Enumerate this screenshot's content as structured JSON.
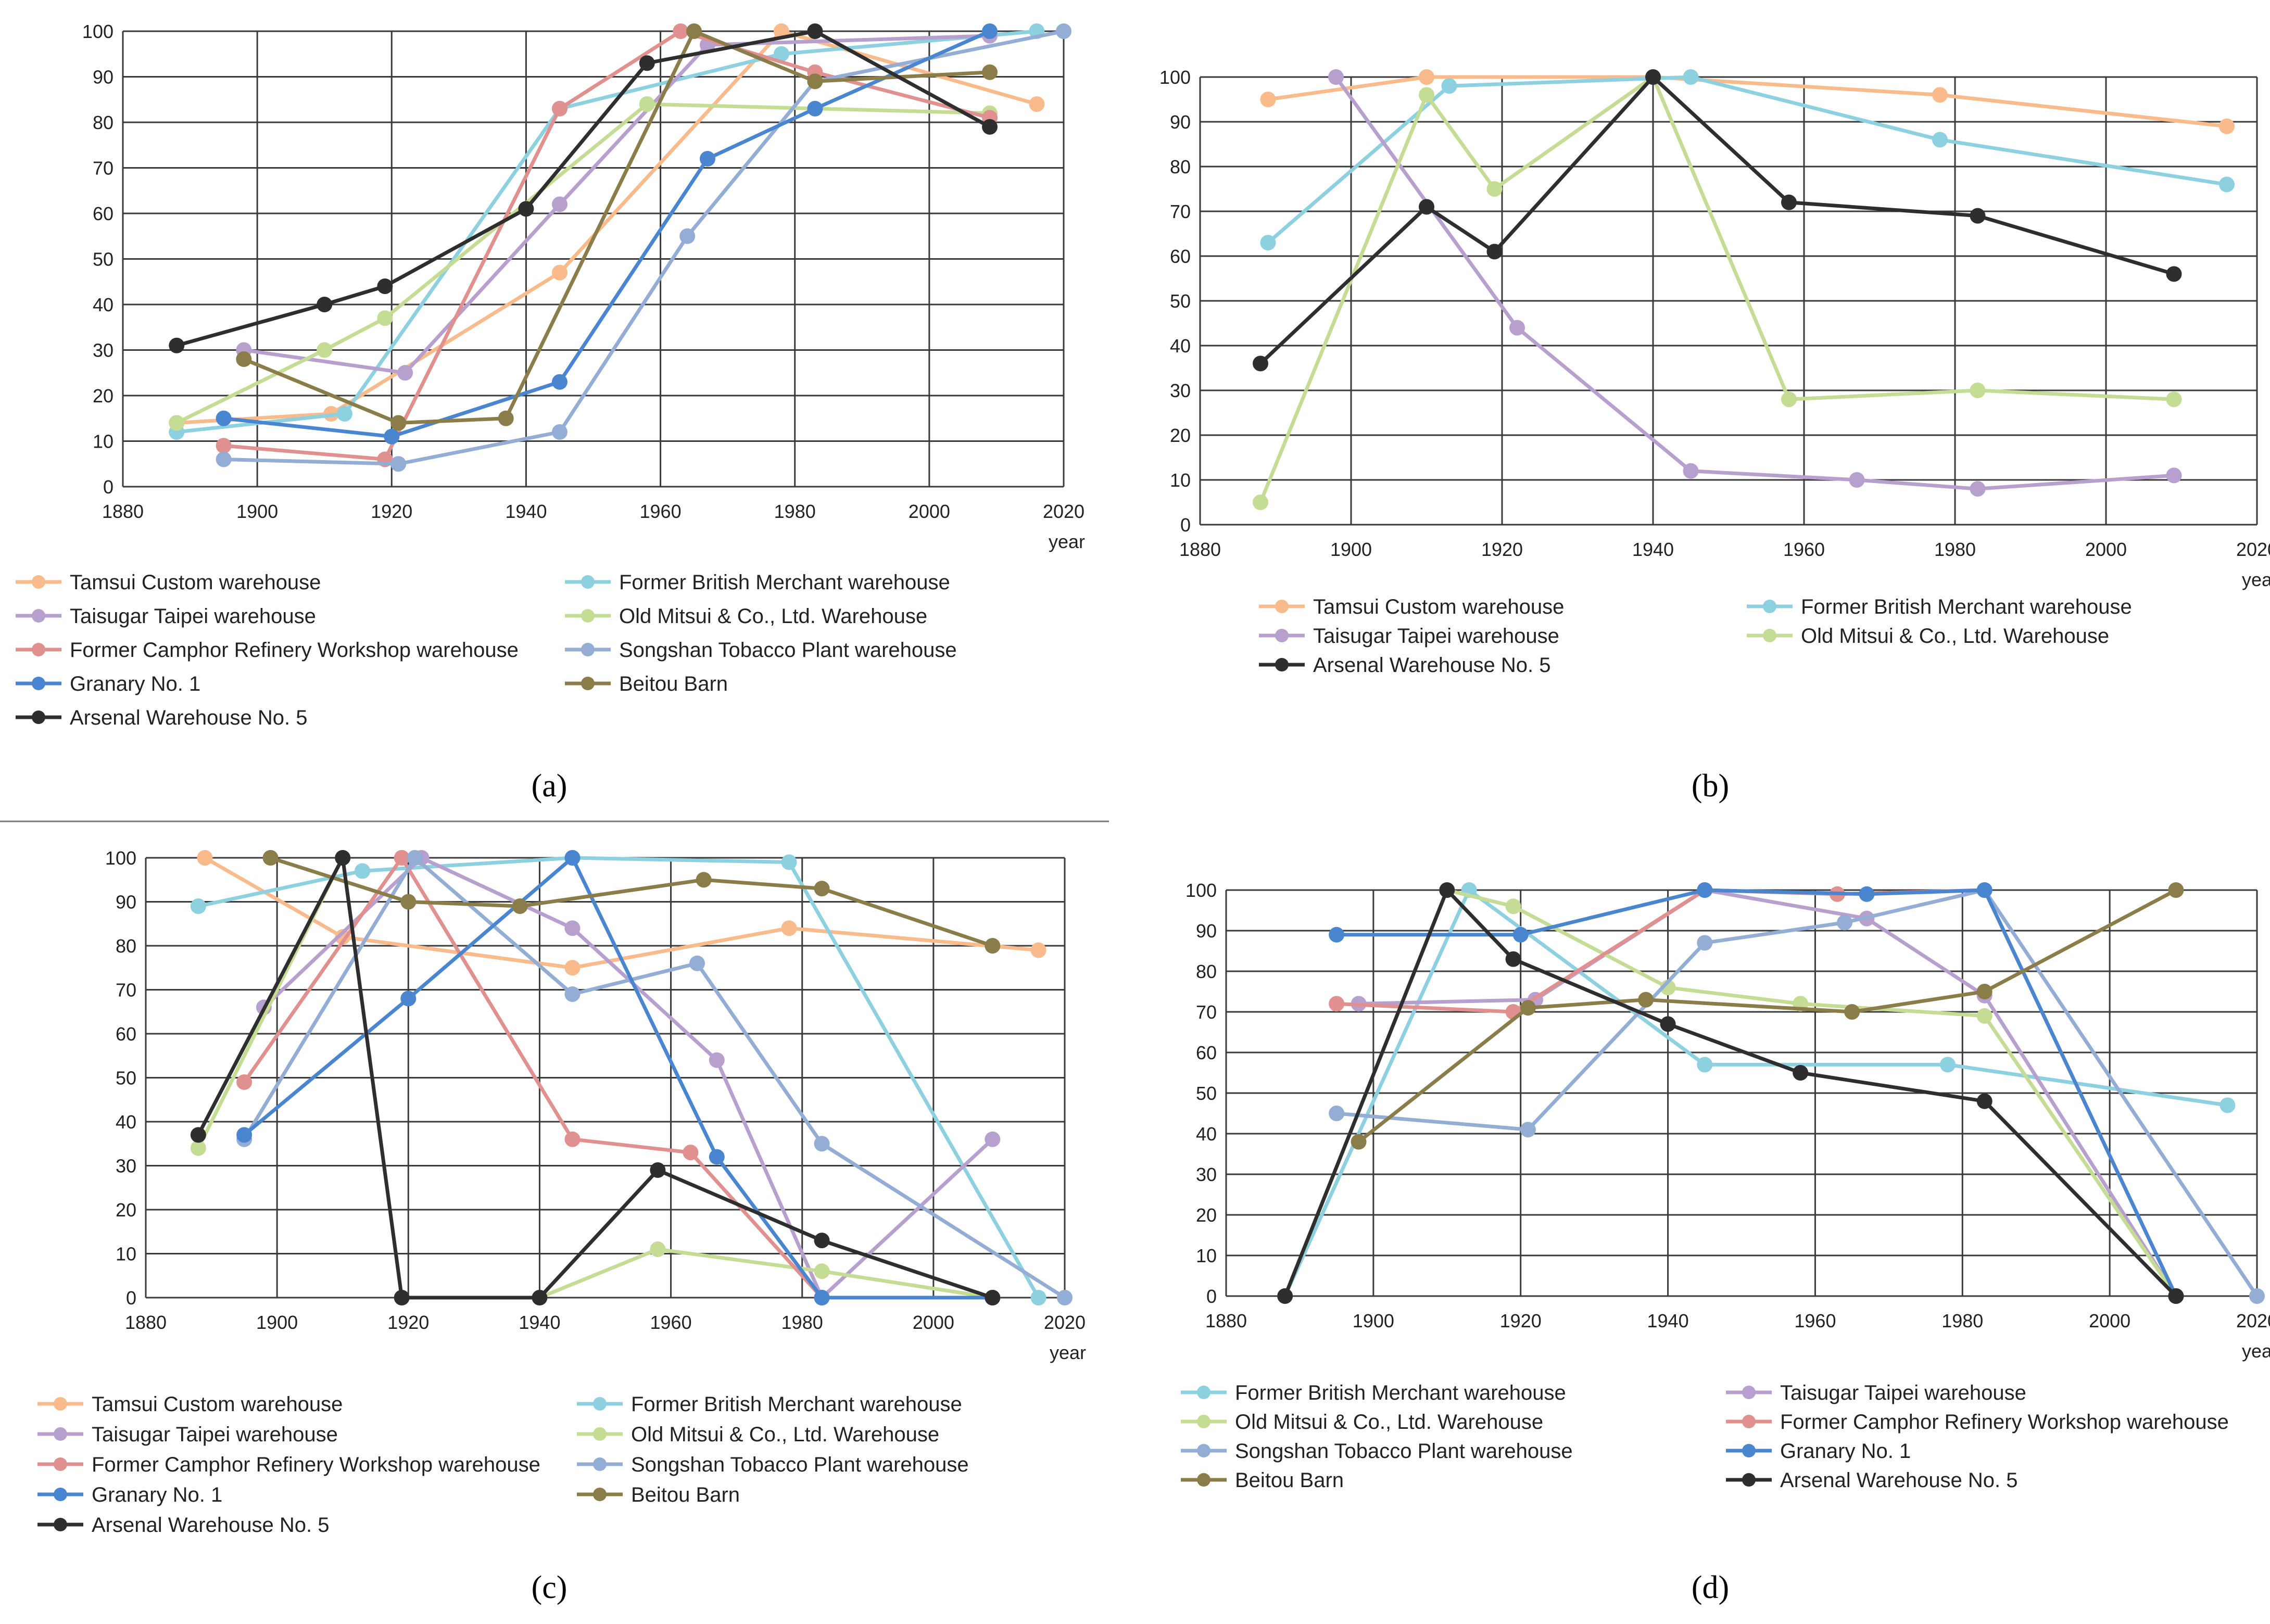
{
  "x_axis_label": "year",
  "captions": [
    "(a)",
    "(b)",
    "(c)",
    "(d)"
  ],
  "chart_data": [
    {
      "type": "line",
      "xlim": [
        1880,
        2020
      ],
      "ylim": [
        0,
        100
      ],
      "x_ticks": [
        1880,
        1900,
        1920,
        1940,
        1960,
        1980,
        2000,
        2020
      ],
      "y_ticks": [
        0,
        10,
        20,
        30,
        40,
        50,
        60,
        70,
        80,
        90,
        100
      ],
      "xlabel": "year",
      "grid": true,
      "legend_position": "bottom",
      "legend_columns": 2,
      "series": [
        {
          "name": "Tamsui Custom warehouse",
          "color": "#F9BB8B",
          "points": [
            [
              1888,
              14
            ],
            [
              1911,
              16
            ],
            [
              1945,
              47
            ],
            [
              1978,
              100
            ],
            [
              2016,
              84
            ]
          ]
        },
        {
          "name": "Former British Merchant warehouse",
          "color": "#8DD0E0",
          "points": [
            [
              1888,
              12
            ],
            [
              1913,
              16
            ],
            [
              1945,
              83
            ],
            [
              1978,
              95
            ],
            [
              2016,
              100
            ]
          ]
        },
        {
          "name": "Taisugar Taipei warehouse",
          "color": "#B7A0CE",
          "points": [
            [
              1898,
              30
            ],
            [
              1922,
              25
            ],
            [
              1945,
              62
            ],
            [
              1967,
              97
            ],
            [
              2009,
              99
            ]
          ]
        },
        {
          "name": "Old Mitsui & Co., Ltd. Warehouse",
          "color": "#C5DC95",
          "points": [
            [
              1888,
              14
            ],
            [
              1910,
              30
            ],
            [
              1919,
              37
            ],
            [
              1958,
              84
            ],
            [
              2009,
              82
            ]
          ]
        },
        {
          "name": "Former Camphor Refinery Workshop warehouse",
          "color": "#E0908E",
          "points": [
            [
              1895,
              9
            ],
            [
              1919,
              6
            ],
            [
              1945,
              83
            ],
            [
              1963,
              100
            ],
            [
              1983,
              91
            ],
            [
              2009,
              81
            ]
          ]
        },
        {
          "name": "Songshan Tobacco Plant warehouse",
          "color": "#93ADD5",
          "points": [
            [
              1895,
              6
            ],
            [
              1921,
              5
            ],
            [
              1945,
              12
            ],
            [
              1964,
              55
            ],
            [
              1983,
              89
            ],
            [
              2020,
              100
            ]
          ]
        },
        {
          "name": "Granary No. 1",
          "color": "#4A86D0",
          "points": [
            [
              1895,
              15
            ],
            [
              1920,
              11
            ],
            [
              1945,
              23
            ],
            [
              1967,
              72
            ],
            [
              1983,
              83
            ],
            [
              2009,
              100
            ]
          ]
        },
        {
          "name": "Beitou Barn",
          "color": "#8A7D49",
          "points": [
            [
              1898,
              28
            ],
            [
              1921,
              14
            ],
            [
              1937,
              15
            ],
            [
              1965,
              100
            ],
            [
              1983,
              89
            ],
            [
              2009,
              91
            ]
          ]
        },
        {
          "name": "Arsenal Warehouse No. 5",
          "color": "#2E2E2E",
          "points": [
            [
              1888,
              31
            ],
            [
              1910,
              40
            ],
            [
              1919,
              44
            ],
            [
              1940,
              61
            ],
            [
              1958,
              93
            ],
            [
              1983,
              100
            ],
            [
              2009,
              79
            ]
          ]
        }
      ]
    },
    {
      "type": "line",
      "xlim": [
        1880,
        2020
      ],
      "ylim": [
        0,
        100
      ],
      "x_ticks": [
        1880,
        1900,
        1920,
        1940,
        1960,
        1980,
        2000,
        2020
      ],
      "y_ticks": [
        0,
        10,
        20,
        30,
        40,
        50,
        60,
        70,
        80,
        90,
        100
      ],
      "xlabel": "year",
      "grid": true,
      "legend_position": "bottom",
      "legend_columns": 2,
      "series": [
        {
          "name": "Tamsui Custom warehouse",
          "color": "#F9BB8B",
          "points": [
            [
              1889,
              95
            ],
            [
              1910,
              100
            ],
            [
              1940,
              100
            ],
            [
              1978,
              96
            ],
            [
              2016,
              89
            ]
          ]
        },
        {
          "name": "Former British Merchant warehouse",
          "color": "#8DD0E0",
          "points": [
            [
              1889,
              63
            ],
            [
              1913,
              98
            ],
            [
              1945,
              100
            ],
            [
              1978,
              86
            ],
            [
              2016,
              76
            ]
          ]
        },
        {
          "name": "Taisugar Taipei warehouse",
          "color": "#B7A0CE",
          "points": [
            [
              1898,
              100
            ],
            [
              1922,
              44
            ],
            [
              1945,
              12
            ],
            [
              1967,
              10
            ],
            [
              1983,
              8
            ],
            [
              2009,
              11
            ]
          ]
        },
        {
          "name": "Old Mitsui & Co., Ltd. Warehouse",
          "color": "#C5DC95",
          "points": [
            [
              1888,
              5
            ],
            [
              1910,
              96
            ],
            [
              1919,
              75
            ],
            [
              1940,
              100
            ],
            [
              1958,
              28
            ],
            [
              1983,
              30
            ],
            [
              2009,
              28
            ]
          ]
        },
        {
          "name": "Arsenal Warehouse No. 5",
          "color": "#2E2E2E",
          "points": [
            [
              1888,
              36
            ],
            [
              1910,
              71
            ],
            [
              1919,
              61
            ],
            [
              1940,
              100
            ],
            [
              1958,
              72
            ],
            [
              1983,
              69
            ],
            [
              2009,
              56
            ]
          ]
        }
      ]
    },
    {
      "type": "line",
      "xlim": [
        1880,
        2020
      ],
      "ylim": [
        0,
        100
      ],
      "x_ticks": [
        1880,
        1900,
        1920,
        1940,
        1960,
        1980,
        2000,
        2020
      ],
      "y_ticks": [
        0,
        10,
        20,
        30,
        40,
        50,
        60,
        70,
        80,
        90,
        100
      ],
      "xlabel": "year",
      "grid": true,
      "legend_position": "bottom",
      "legend_columns": 2,
      "series": [
        {
          "name": "Tamsui Custom warehouse",
          "color": "#F9BB8B",
          "points": [
            [
              1889,
              100
            ],
            [
              1910,
              82
            ],
            [
              1945,
              75
            ],
            [
              1978,
              84
            ],
            [
              2016,
              79
            ]
          ]
        },
        {
          "name": "Former British Merchant warehouse",
          "color": "#8DD0E0",
          "points": [
            [
              1888,
              89
            ],
            [
              1913,
              97
            ],
            [
              1945,
              100
            ],
            [
              1978,
              99
            ],
            [
              2016,
              0
            ]
          ]
        },
        {
          "name": "Taisugar Taipei warehouse",
          "color": "#B7A0CE",
          "points": [
            [
              1898,
              66
            ],
            [
              1922,
              100
            ],
            [
              1945,
              84
            ],
            [
              1967,
              54
            ],
            [
              1983,
              0
            ],
            [
              2009,
              36
            ]
          ]
        },
        {
          "name": "Old Mitsui & Co., Ltd. Warehouse",
          "color": "#C5DC95",
          "points": [
            [
              1888,
              34
            ],
            [
              1910,
              100
            ],
            [
              1919,
              0
            ],
            [
              1940,
              0
            ],
            [
              1958,
              11
            ],
            [
              1983,
              6
            ],
            [
              2009,
              0
            ]
          ]
        },
        {
          "name": "Former Camphor Refinery Workshop warehouse",
          "color": "#E0908E",
          "points": [
            [
              1895,
              49
            ],
            [
              1919,
              100
            ],
            [
              1945,
              36
            ],
            [
              1963,
              33
            ],
            [
              1983,
              0
            ],
            [
              2009,
              0
            ]
          ]
        },
        {
          "name": "Songshan Tobacco Plant warehouse",
          "color": "#93ADD5",
          "points": [
            [
              1895,
              36
            ],
            [
              1921,
              100
            ],
            [
              1945,
              69
            ],
            [
              1964,
              76
            ],
            [
              1983,
              35
            ],
            [
              2020,
              0
            ]
          ]
        },
        {
          "name": "Granary No. 1",
          "color": "#4A86D0",
          "points": [
            [
              1895,
              37
            ],
            [
              1920,
              68
            ],
            [
              1945,
              100
            ],
            [
              1967,
              32
            ],
            [
              1983,
              0
            ],
            [
              2009,
              0
            ]
          ]
        },
        {
          "name": "Beitou Barn",
          "color": "#8A7D49",
          "points": [
            [
              1899,
              100
            ],
            [
              1920,
              90
            ],
            [
              1937,
              89
            ],
            [
              1965,
              95
            ],
            [
              1983,
              93
            ],
            [
              2009,
              80
            ]
          ]
        },
        {
          "name": "Arsenal Warehouse No. 5",
          "color": "#2E2E2E",
          "points": [
            [
              1888,
              37
            ],
            [
              1910,
              100
            ],
            [
              1919,
              0
            ],
            [
              1940,
              0
            ],
            [
              1958,
              29
            ],
            [
              1983,
              13
            ],
            [
              2009,
              0
            ]
          ]
        }
      ]
    },
    {
      "type": "line",
      "xlim": [
        1880,
        2020
      ],
      "ylim": [
        0,
        100
      ],
      "x_ticks": [
        1880,
        1900,
        1920,
        1940,
        1960,
        1980,
        2000,
        2020
      ],
      "y_ticks": [
        0,
        10,
        20,
        30,
        40,
        50,
        60,
        70,
        80,
        90,
        100
      ],
      "xlabel": "year",
      "grid": true,
      "legend_position": "bottom",
      "legend_columns": 2,
      "series": [
        {
          "name": "Former British Merchant warehouse",
          "color": "#8DD0E0",
          "points": [
            [
              1888,
              0
            ],
            [
              1913,
              100
            ],
            [
              1945,
              57
            ],
            [
              1978,
              57
            ],
            [
              2016,
              47
            ]
          ]
        },
        {
          "name": "Taisugar Taipei warehouse",
          "color": "#B7A0CE",
          "points": [
            [
              1898,
              72
            ],
            [
              1922,
              73
            ],
            [
              1945,
              100
            ],
            [
              1967,
              93
            ],
            [
              1983,
              74
            ],
            [
              2009,
              0
            ]
          ]
        },
        {
          "name": "Old Mitsui & Co., Ltd. Warehouse",
          "color": "#C5DC95",
          "points": [
            [
              1888,
              0
            ],
            [
              1910,
              100
            ],
            [
              1919,
              96
            ],
            [
              1940,
              76
            ],
            [
              1958,
              72
            ],
            [
              1983,
              69
            ],
            [
              2009,
              0
            ]
          ]
        },
        {
          "name": "Former Camphor Refinery Workshop warehouse",
          "color": "#E0908E",
          "points": [
            [
              1895,
              72
            ],
            [
              1919,
              70
            ],
            [
              1945,
              100
            ],
            [
              1963,
              99
            ],
            [
              1983,
              100
            ],
            [
              2009,
              0
            ]
          ]
        },
        {
          "name": "Songshan Tobacco Plant warehouse",
          "color": "#93ADD5",
          "points": [
            [
              1895,
              45
            ],
            [
              1921,
              41
            ],
            [
              1945,
              87
            ],
            [
              1964,
              92
            ],
            [
              1983,
              100
            ],
            [
              2020,
              0
            ]
          ]
        },
        {
          "name": "Granary No. 1",
          "color": "#4A86D0",
          "points": [
            [
              1895,
              89
            ],
            [
              1920,
              89
            ],
            [
              1945,
              100
            ],
            [
              1967,
              99
            ],
            [
              1983,
              100
            ],
            [
              2009,
              0
            ]
          ]
        },
        {
          "name": "Beitou Barn",
          "color": "#8A7D49",
          "points": [
            [
              1898,
              38
            ],
            [
              1921,
              71
            ],
            [
              1937,
              73
            ],
            [
              1965,
              70
            ],
            [
              1983,
              75
            ],
            [
              2009,
              100
            ]
          ]
        },
        {
          "name": "Arsenal Warehouse No. 5",
          "color": "#2E2E2E",
          "points": [
            [
              1888,
              0
            ],
            [
              1910,
              100
            ],
            [
              1919,
              83
            ],
            [
              1940,
              67
            ],
            [
              1958,
              55
            ],
            [
              1983,
              48
            ],
            [
              2009,
              0
            ]
          ]
        }
      ]
    }
  ]
}
